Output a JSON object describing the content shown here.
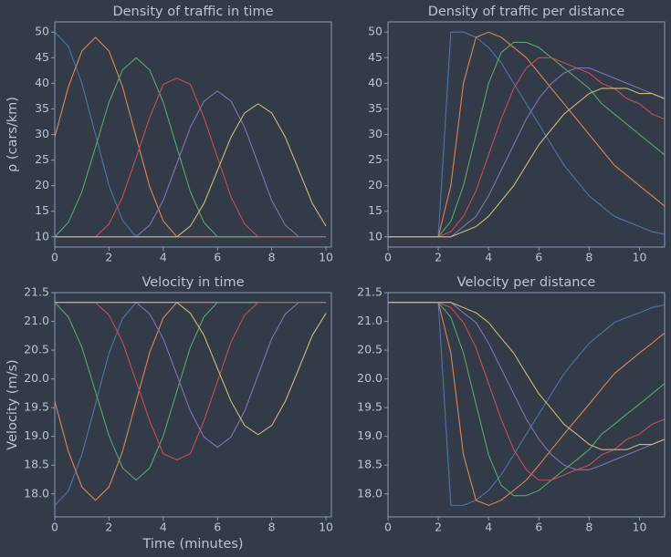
{
  "chart_data": [
    {
      "type": "line",
      "title": "Density of traffic in time",
      "ylabel": "ρ (cars/km)",
      "x": [
        0,
        0.5,
        1,
        1.5,
        2,
        2.5,
        3,
        3.5,
        4,
        4.5,
        5,
        5.5,
        6,
        6.5,
        7,
        7.5,
        8,
        8.5,
        9,
        9.5,
        10
      ],
      "series": [
        {
          "color": "#4c72b0",
          "values": [
            50,
            47.2,
            40,
            30,
            20,
            13.2,
            10,
            10,
            10,
            10,
            10,
            10,
            10,
            10,
            10,
            10,
            10,
            10,
            10,
            10,
            10
          ]
        },
        {
          "color": "#dd8452",
          "values": [
            29.5,
            39.3,
            46.3,
            49,
            46.3,
            39.3,
            29.5,
            19.8,
            13.1,
            10,
            10,
            10,
            10,
            10,
            10,
            10,
            10,
            10,
            10,
            10,
            10
          ]
        },
        {
          "color": "#55a868",
          "values": [
            10,
            12.8,
            18.8,
            27.5,
            36.3,
            42.6,
            45,
            42.6,
            36.3,
            27.5,
            18.8,
            12.8,
            10,
            10,
            10,
            10,
            10,
            10,
            10,
            10,
            10
          ]
        },
        {
          "color": "#c44e52",
          "values": [
            10,
            10,
            10,
            10,
            12.5,
            17.8,
            25.5,
            33.3,
            39.8,
            41,
            39.8,
            33.3,
            25.5,
            17.8,
            12.5,
            10,
            10,
            10,
            10,
            10,
            10
          ]
        },
        {
          "color": "#8172b3",
          "values": [
            10,
            10,
            10,
            10,
            10,
            10,
            10,
            12.3,
            17.1,
            24.3,
            31.4,
            36.5,
            38.5,
            36.5,
            31.4,
            24.3,
            17.1,
            12.3,
            10,
            10,
            10
          ]
        },
        {
          "color": "#ccb974",
          "values": [
            10,
            10,
            10,
            10,
            10,
            10,
            10,
            10,
            10,
            10,
            12.1,
            16.5,
            23,
            29.5,
            34.2,
            36,
            34.2,
            29.5,
            23,
            16.5,
            12.1
          ]
        }
      ],
      "xlim": [
        0,
        10.2
      ],
      "ylim": [
        8,
        52
      ],
      "xticks": [
        0,
        2,
        4,
        6,
        8,
        10
      ],
      "yticks": [
        10,
        15,
        20,
        25,
        30,
        35,
        40,
        45,
        50
      ]
    },
    {
      "type": "line",
      "title": "Density of traffic per distance",
      "x": [
        0,
        1,
        2,
        2.5,
        3,
        3.5,
        4,
        4.5,
        5,
        5.5,
        6,
        6.5,
        7,
        7.5,
        8,
        8.5,
        9,
        9.5,
        10,
        10.5,
        11
      ],
      "series": [
        {
          "color": "#4c72b0",
          "values": [
            10,
            10,
            10,
            50,
            50,
            49,
            47,
            44,
            40,
            36,
            32,
            28,
            24,
            21,
            18,
            16,
            14,
            13,
            12,
            11,
            10.5
          ]
        },
        {
          "color": "#dd8452",
          "values": [
            10,
            10,
            10,
            20,
            40,
            49,
            50,
            49,
            47,
            45,
            42,
            39,
            36,
            33,
            30,
            27,
            24,
            22,
            20,
            18,
            16
          ]
        },
        {
          "color": "#55a868",
          "values": [
            10,
            10,
            10,
            13,
            20,
            30,
            40,
            46,
            48,
            48,
            47,
            45,
            43,
            41,
            39,
            36,
            34,
            32,
            30,
            28,
            26
          ]
        },
        {
          "color": "#c44e52",
          "values": [
            10,
            10,
            10,
            11,
            14,
            19,
            26,
            33,
            39,
            43,
            45,
            45,
            44,
            43,
            42,
            40,
            39,
            37,
            36,
            34,
            33
          ]
        },
        {
          "color": "#8172b3",
          "values": [
            10,
            10,
            10,
            10,
            12,
            14,
            18,
            23,
            28,
            33,
            37,
            40,
            42,
            43,
            43,
            42,
            41,
            40,
            39,
            38,
            37
          ]
        },
        {
          "color": "#ccb974",
          "values": [
            10,
            10,
            10,
            10,
            11,
            12,
            14,
            17,
            20,
            24,
            28,
            31,
            34,
            36,
            38,
            39,
            39,
            39,
            38,
            38,
            37
          ]
        }
      ],
      "xlim": [
        0,
        11
      ],
      "ylim": [
        8,
        52
      ],
      "xticks": [
        0,
        2,
        4,
        6,
        8,
        10
      ],
      "yticks": [
        10,
        15,
        20,
        25,
        30,
        35,
        40,
        45,
        50
      ]
    },
    {
      "type": "line",
      "title": "Velocity in time",
      "ylabel": "Velocity (m/s)",
      "xlabel": "Time (minutes)",
      "x": [
        0,
        0.5,
        1,
        1.5,
        2,
        2.5,
        3,
        3.5,
        4,
        4.5,
        5,
        5.5,
        6,
        6.5,
        7,
        7.5,
        8,
        8.5,
        9,
        9.5,
        10
      ],
      "series": [
        {
          "color": "#4c72b0",
          "values": [
            17.8,
            18.05,
            18.68,
            19.56,
            20.45,
            21.05,
            21.33,
            21.33,
            21.33,
            21.33,
            21.33,
            21.33,
            21.33,
            21.33,
            21.33,
            21.33,
            21.33,
            21.33,
            21.33,
            21.33,
            21.33
          ]
        },
        {
          "color": "#dd8452",
          "values": [
            19.61,
            18.74,
            18.12,
            17.89,
            18.12,
            18.74,
            19.61,
            20.46,
            21.06,
            21.33,
            21.33,
            21.33,
            21.33,
            21.33,
            21.33,
            21.33,
            21.33,
            21.33,
            21.33,
            21.33,
            21.33
          ]
        },
        {
          "color": "#55a868",
          "values": [
            21.33,
            21.08,
            20.55,
            19.78,
            19.01,
            18.45,
            18.24,
            18.45,
            19.01,
            19.78,
            20.55,
            21.08,
            21.33,
            21.33,
            21.33,
            21.33,
            21.33,
            21.33,
            21.33,
            21.33,
            21.33
          ]
        },
        {
          "color": "#c44e52",
          "values": [
            21.33,
            21.33,
            21.33,
            21.33,
            21.11,
            20.64,
            19.96,
            19.27,
            18.7,
            18.59,
            18.7,
            19.27,
            19.96,
            20.64,
            21.11,
            21.33,
            21.33,
            21.33,
            21.33,
            21.33,
            21.33
          ]
        },
        {
          "color": "#8172b3",
          "values": [
            21.33,
            21.33,
            21.33,
            21.33,
            21.33,
            21.33,
            21.33,
            21.13,
            20.7,
            20.07,
            19.44,
            18.99,
            18.81,
            18.99,
            19.44,
            20.07,
            20.7,
            21.13,
            21.33,
            21.33,
            21.33
          ]
        },
        {
          "color": "#ccb974",
          "values": [
            21.33,
            21.33,
            21.33,
            21.33,
            21.33,
            21.33,
            21.33,
            21.33,
            21.33,
            21.33,
            21.14,
            20.76,
            20.18,
            19.61,
            19.19,
            19.03,
            19.19,
            19.61,
            20.18,
            20.76,
            21.14
          ]
        }
      ],
      "xlim": [
        0,
        10.2
      ],
      "ylim": [
        17.6,
        21.5
      ],
      "xticks": [
        0,
        2,
        4,
        6,
        8,
        10
      ],
      "yticks": [
        {
          "value": 18,
          "label": "18.0"
        },
        18.5,
        {
          "value": 19,
          "label": "19.0"
        },
        19.5,
        {
          "value": 20,
          "label": "20.0"
        },
        20.5,
        {
          "value": 21,
          "label": "21.0"
        },
        21.5
      ]
    },
    {
      "type": "line",
      "title": "Velocity per distance",
      "x": [
        0,
        1,
        2,
        2.5,
        3,
        3.5,
        4,
        4.5,
        5,
        5.5,
        6,
        6.5,
        7,
        7.5,
        8,
        8.5,
        9,
        9.5,
        10,
        10.5,
        11
      ],
      "series": [
        {
          "color": "#4c72b0",
          "values": [
            21.33,
            21.33,
            21.33,
            17.8,
            17.8,
            17.89,
            18.06,
            18.33,
            18.68,
            19.04,
            19.39,
            19.74,
            20.09,
            20.36,
            20.62,
            20.8,
            20.98,
            21.07,
            21.15,
            21.24,
            21.29
          ]
        },
        {
          "color": "#dd8452",
          "values": [
            21.33,
            21.33,
            21.33,
            20.45,
            18.68,
            17.89,
            17.8,
            17.89,
            18.06,
            18.24,
            18.5,
            18.77,
            19.04,
            19.3,
            19.56,
            19.83,
            20.09,
            20.27,
            20.45,
            20.62,
            20.8
          ]
        },
        {
          "color": "#55a868",
          "values": [
            21.33,
            21.33,
            21.33,
            21.07,
            20.45,
            19.56,
            18.68,
            18.15,
            17.97,
            17.97,
            18.06,
            18.24,
            18.42,
            18.59,
            18.77,
            19.04,
            19.21,
            19.39,
            19.56,
            19.74,
            19.92
          ]
        },
        {
          "color": "#c44e52",
          "values": [
            21.33,
            21.33,
            21.33,
            21.24,
            20.98,
            20.54,
            19.92,
            19.3,
            18.77,
            18.42,
            18.24,
            18.24,
            18.33,
            18.42,
            18.5,
            18.68,
            18.77,
            18.95,
            19.04,
            19.21,
            19.3
          ]
        },
        {
          "color": "#8172b3",
          "values": [
            21.33,
            21.33,
            21.33,
            21.33,
            21.15,
            20.98,
            20.62,
            20.18,
            19.74,
            19.3,
            18.95,
            18.68,
            18.5,
            18.42,
            18.42,
            18.5,
            18.59,
            18.68,
            18.77,
            18.86,
            18.95
          ]
        },
        {
          "color": "#ccb974",
          "values": [
            21.33,
            21.33,
            21.33,
            21.33,
            21.24,
            21.15,
            20.98,
            20.71,
            20.45,
            20.09,
            19.74,
            19.48,
            19.21,
            19.04,
            18.86,
            18.77,
            18.77,
            18.77,
            18.86,
            18.86,
            18.95
          ]
        }
      ],
      "xlim": [
        0,
        11
      ],
      "ylim": [
        17.6,
        21.5
      ],
      "xticks": [
        0,
        2,
        4,
        6,
        8,
        10
      ],
      "yticks": [
        {
          "value": 18,
          "label": "18.0"
        },
        18.5,
        {
          "value": 19,
          "label": "19.0"
        },
        19.5,
        {
          "value": 20,
          "label": "20.0"
        },
        20.5,
        {
          "value": 21,
          "label": "21.0"
        },
        21.5
      ]
    }
  ]
}
